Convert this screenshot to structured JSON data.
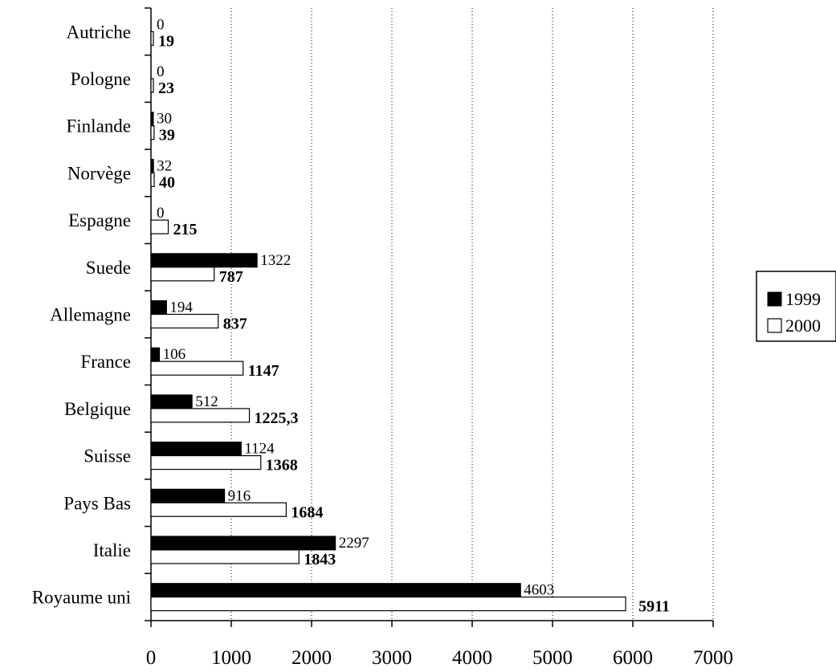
{
  "chart_data": {
    "type": "bar",
    "orientation": "horizontal",
    "categories": [
      "Autriche",
      "Pologne",
      "Finlande",
      "Norvège",
      "Espagne",
      "Suede",
      "Allemagne",
      "France",
      "Belgique",
      "Suisse",
      "Pays Bas",
      "Italie",
      "Royaume uni"
    ],
    "series": [
      {
        "name": "1999",
        "color": "#000000",
        "values": [
          0,
          0,
          30,
          32,
          0,
          1322,
          194,
          106,
          512,
          1124,
          916,
          2297,
          4603
        ],
        "labels": [
          "0",
          "0",
          "30",
          "32",
          "0",
          "1322",
          "194",
          "106",
          "512",
          "1124",
          "916",
          "2297",
          "4603"
        ]
      },
      {
        "name": "2000",
        "color": "#ffffff",
        "values": [
          19,
          23,
          39,
          40,
          215,
          787,
          837,
          1147,
          1225.3,
          1368,
          1684,
          1843,
          5911
        ],
        "labels": [
          "19",
          "23",
          "39",
          "40",
          "215",
          "787",
          "837",
          "1147",
          "1225,3",
          "1368",
          "1684",
          "1843",
          "5911"
        ]
      }
    ],
    "xlim": [
      0,
      7000
    ],
    "xticks": [
      0,
      1000,
      2000,
      3000,
      4000,
      5000,
      6000,
      7000
    ],
    "xtick_labels": [
      "0",
      "1000",
      "2000",
      "3000",
      "4000",
      "5000",
      "6000",
      "7000"
    ],
    "grid": "vertical dotted",
    "legend": "right",
    "title": "",
    "xlabel": "",
    "ylabel": ""
  }
}
